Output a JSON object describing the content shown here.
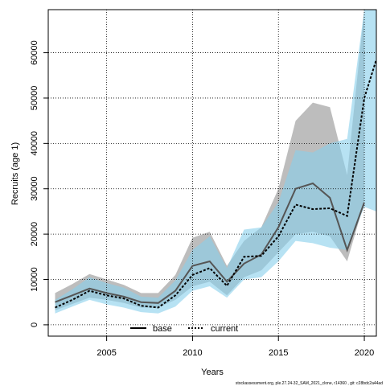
{
  "chart_data": {
    "type": "line",
    "xlabel": "Years",
    "ylabel": "Recruits (age 1)",
    "xlim": [
      2001.6,
      2020.7
    ],
    "ylim": [
      -2500,
      69500
    ],
    "x_ticks": [
      2005,
      2010,
      2015,
      2020
    ],
    "y_ticks": [
      0,
      10000,
      20000,
      30000,
      40000,
      50000,
      60000
    ],
    "grid": true,
    "legend_position": "bottom",
    "footnote": "stockassessment.org, ple.27.24-32_SAM_2021_clone, r14360 , git: c28bdc2a44ad",
    "years": [
      2002,
      2003,
      2004,
      2005,
      2006,
      2007,
      2008,
      2009,
      2010,
      2011,
      2012,
      2013,
      2014,
      2015,
      2016,
      2017,
      2018,
      2019,
      2020
    ],
    "series": [
      {
        "name": "base",
        "line_style": "solid",
        "band_color": "#bdbdbd",
        "line_color": "#555555",
        "values": [
          5000,
          6500,
          8000,
          7000,
          6200,
          5000,
          4800,
          7500,
          13000,
          14000,
          9500,
          13500,
          15500,
          21500,
          30000,
          31200,
          28000,
          16500,
          27000
        ],
        "lower": [
          3200,
          4600,
          6000,
          5500,
          4800,
          3800,
          3800,
          5500,
          8500,
          9500,
          6500,
          10500,
          12000,
          16000,
          20000,
          20500,
          19500,
          14000,
          27000
        ],
        "upper": [
          7000,
          9000,
          11200,
          10000,
          8800,
          7000,
          7000,
          11000,
          19200,
          20500,
          13000,
          18500,
          21500,
          30000,
          45000,
          49000,
          48000,
          33000,
          69500
        ]
      },
      {
        "name": "current",
        "line_style": "dotted",
        "band_color": "#87ceeb",
        "line_color": "#000000",
        "values": [
          3800,
          5500,
          7500,
          6500,
          5800,
          4200,
          3800,
          6500,
          11000,
          12500,
          8600,
          15000,
          15200,
          19500,
          26500,
          25500,
          25700,
          24000,
          50000,
          58500
        ],
        "x": [
          2002,
          2003,
          2004,
          2005,
          2006,
          2007,
          2008,
          2009,
          2010,
          2011,
          2012,
          2013,
          2014,
          2015,
          2016,
          2017,
          2018,
          2019,
          2020,
          2020.7
        ],
        "lower": [
          2500,
          4000,
          5500,
          4500,
          3800,
          2800,
          2500,
          4000,
          7500,
          8500,
          6000,
          10000,
          10500,
          14000,
          18500,
          18000,
          17000,
          16500,
          26000,
          25000
        ],
        "upper": [
          5500,
          7800,
          10500,
          9200,
          8200,
          6200,
          6000,
          9800,
          16500,
          19500,
          12500,
          21000,
          21500,
          27000,
          38500,
          38000,
          40000,
          41000,
          69500,
          69500
        ]
      }
    ]
  }
}
